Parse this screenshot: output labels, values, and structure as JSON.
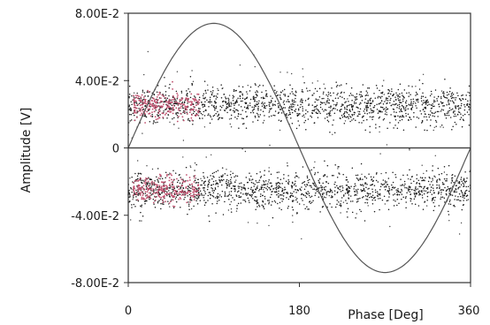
{
  "chart_data": {
    "type": "scatter",
    "title": "",
    "xlabel": "Phase [Deg]",
    "ylabel": "Amplitude [V]",
    "xlim": [
      0,
      360
    ],
    "ylim": [
      -0.08,
      0.08
    ],
    "x_ticks": [
      {
        "value": 0,
        "label": "0"
      },
      {
        "value": 180,
        "label": "180"
      },
      {
        "value": 360,
        "label": "360"
      }
    ],
    "y_ticks": [
      {
        "value": 0.08,
        "label": "8.00E-2"
      },
      {
        "value": 0.04,
        "label": "4.00E-2"
      },
      {
        "value": 0,
        "label": "0"
      },
      {
        "value": -0.04,
        "label": "-4.00E-2"
      },
      {
        "value": -0.08,
        "label": "-8.00E-2"
      }
    ],
    "grid": false,
    "zero_line": true,
    "reference_curve": {
      "shape": "sine",
      "amplitude": 0.074,
      "period_deg": 360,
      "color": "#555555"
    },
    "scatter_bands": [
      {
        "center": 0.025,
        "spread": 0.0055,
        "x_range": [
          0,
          360
        ],
        "color": "#1a1a1a"
      },
      {
        "center": -0.025,
        "spread": 0.0055,
        "x_range": [
          0,
          360
        ],
        "color": "#1a1a1a"
      }
    ],
    "highlight_clusters": [
      {
        "center": 0.025,
        "spread": 0.004,
        "x_range": [
          5,
          75
        ],
        "color": "#c0506e"
      },
      {
        "center": -0.025,
        "spread": 0.004,
        "x_range": [
          5,
          75
        ],
        "color": "#c0506e"
      }
    ]
  }
}
